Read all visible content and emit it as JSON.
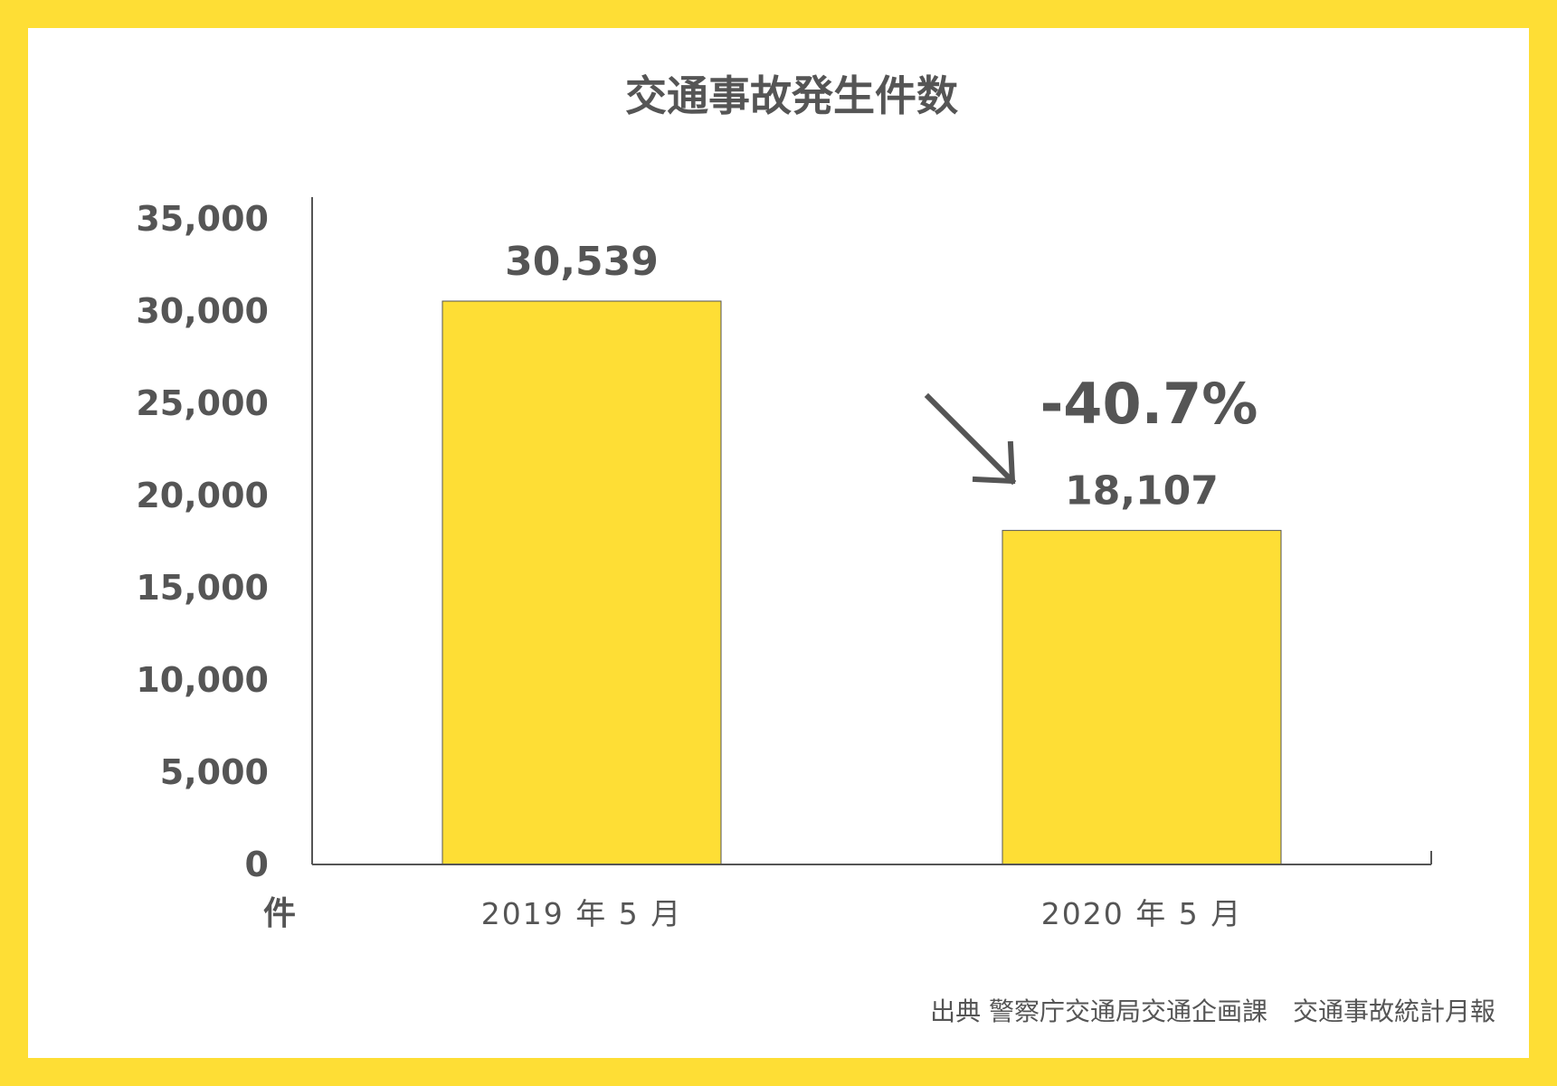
{
  "chart_data": {
    "type": "bar",
    "title": "交通事故発生件数",
    "categories": [
      "2019 年 5 月",
      "2020 年 5 月"
    ],
    "values": [
      30539,
      18107
    ],
    "value_labels": [
      "30,539",
      "18,107"
    ],
    "ylim": [
      0,
      35000
    ],
    "yticks": [
      0,
      5000,
      10000,
      15000,
      20000,
      25000,
      30000,
      35000
    ],
    "ytick_labels": [
      "0",
      "5,000",
      "10,000",
      "15,000",
      "20,000",
      "25,000",
      "30,000",
      "35,000"
    ],
    "yunit": "件",
    "annotation": "-40.7%",
    "source": "出典 警察庁交通局交通企画課　交通事故統計月報",
    "grid": false,
    "bar_color": "#FEDE35",
    "frame_color": "#FEDE35",
    "text_color": "#555555"
  }
}
